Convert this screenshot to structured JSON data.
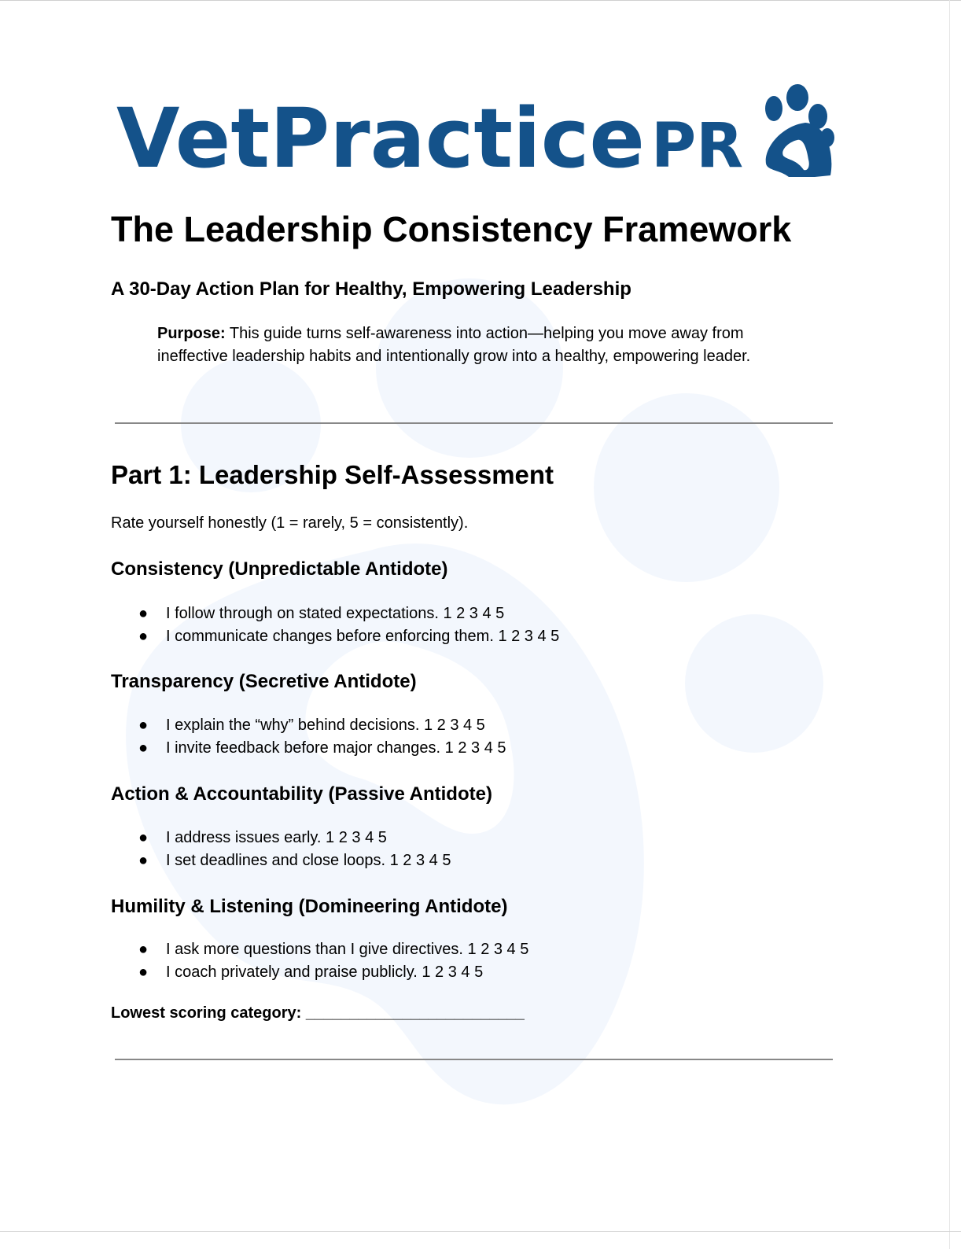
{
  "logo": {
    "text": "VetPracticePRO",
    "color": "#14528a"
  },
  "watermark": {
    "icon": "paw-print",
    "color": "#f3f7fd"
  },
  "title": "The Leadership Consistency Framework",
  "subtitle": "A 30-Day Action Plan for Healthy, Empowering Leadership",
  "purpose": {
    "label": "Purpose:",
    "text": " This guide turns self-awareness into action—helping you move away from ineffective leadership habits and intentionally grow into a healthy, empowering leader."
  },
  "part1": {
    "heading": "Part 1: Leadership Self-Assessment",
    "instructions": "Rate yourself honestly (1 = rarely, 5 = consistently).",
    "categories": [
      {
        "heading": "Consistency (Unpredictable Antidote)",
        "items": [
          "I follow through on stated expectations. 1 2 3 4 5",
          "I communicate changes before enforcing them. 1 2 3 4 5"
        ]
      },
      {
        "heading": "Transparency (Secretive Antidote)",
        "items": [
          "I explain the “why” behind decisions. 1 2 3 4 5",
          "I invite feedback before major changes. 1 2 3 4 5"
        ]
      },
      {
        "heading": "Action & Accountability (Passive Antidote)",
        "items": [
          "I address issues early. 1 2 3 4 5",
          "I set deadlines and close loops. 1 2 3 4 5"
        ]
      },
      {
        "heading": "Humility & Listening (Domineering Antidote)",
        "items": [
          "I ask more questions than I give directives. 1 2 3 4 5",
          "I coach privately and praise publicly. 1 2 3 4 5"
        ]
      }
    ],
    "lowest_label": "Lowest scoring category:",
    "lowest_blank": "_________________________"
  },
  "bullet": "●"
}
